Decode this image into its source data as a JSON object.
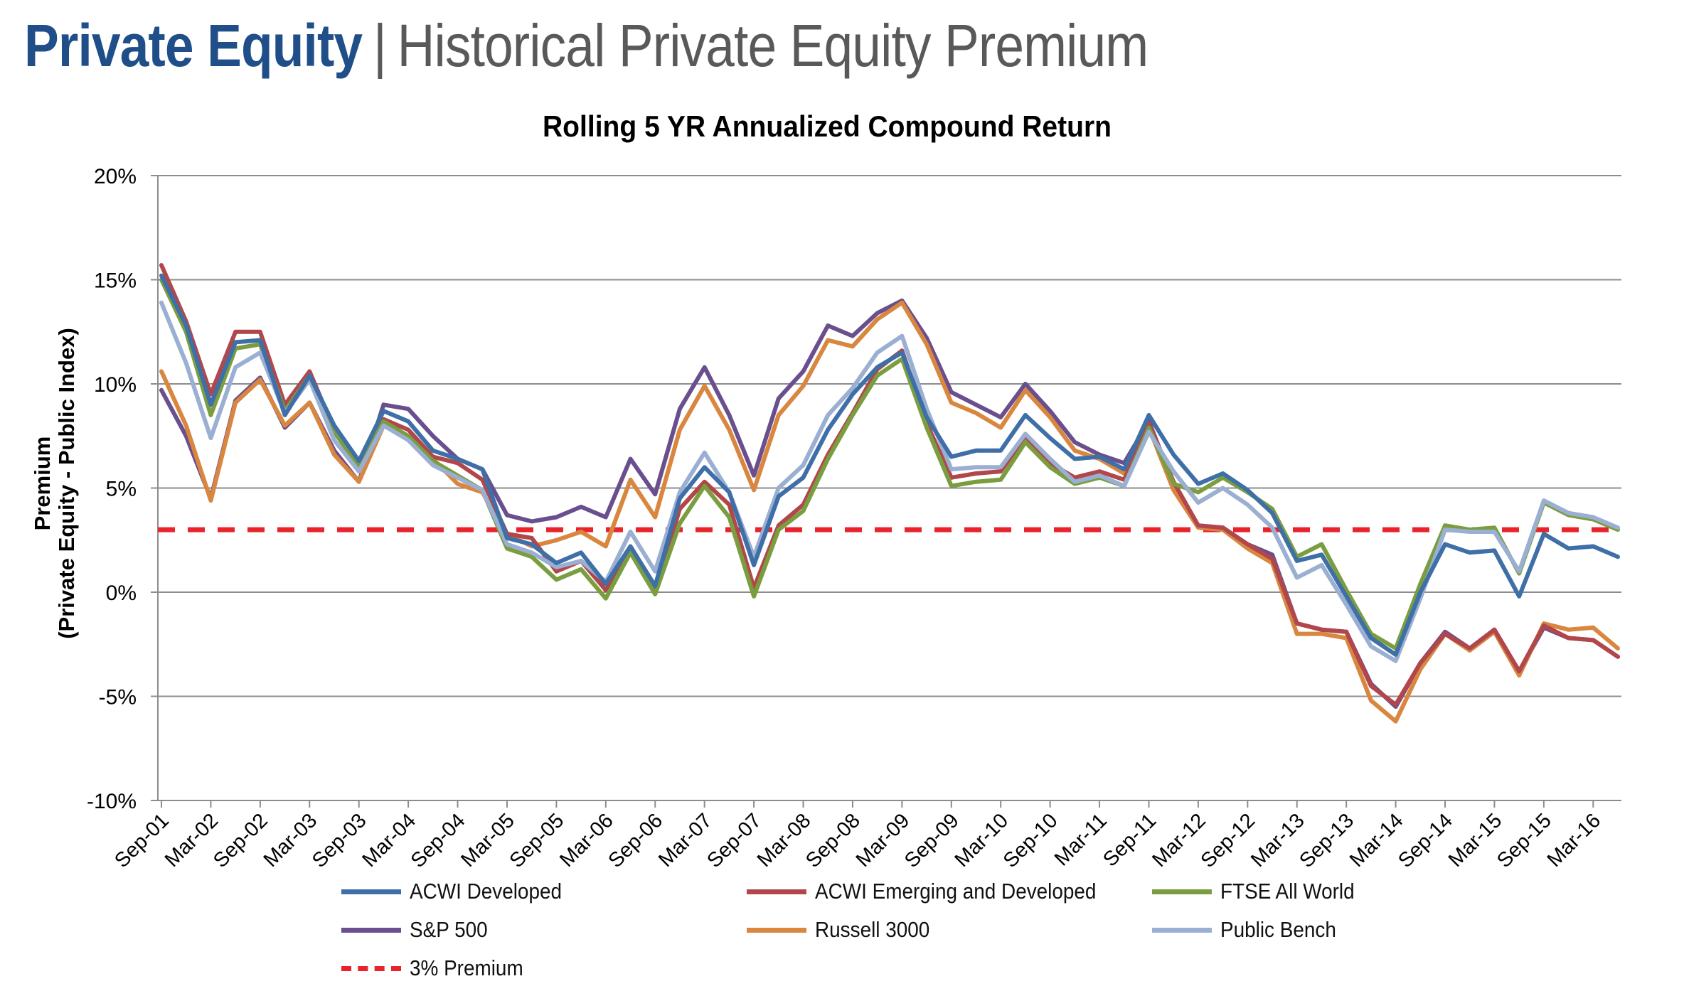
{
  "header": {
    "strong": "Private Equity",
    "separator": "|",
    "rest": "Historical Private Equity Premium"
  },
  "chart_data": {
    "type": "line",
    "title": "Rolling 5 YR Annualized Compound Return",
    "ylabel_line1": "Premium",
    "ylabel_line2": "(Private Equity - Public Index)",
    "xlabel": "",
    "ylim": [
      -10,
      20
    ],
    "yticks": [
      -10,
      -5,
      0,
      5,
      10,
      15,
      20
    ],
    "ytick_labels": [
      "-10%",
      "-5%",
      "0%",
      "5%",
      "10%",
      "15%",
      "20%"
    ],
    "grid": true,
    "legend_position": "bottom",
    "categories": [
      "Sep-01",
      "Dec-01",
      "Mar-02",
      "Jun-02",
      "Sep-02",
      "Dec-02",
      "Mar-03",
      "Jun-03",
      "Sep-03",
      "Dec-03",
      "Mar-04",
      "Jun-04",
      "Sep-04",
      "Dec-04",
      "Mar-05",
      "Jun-05",
      "Sep-05",
      "Dec-05",
      "Mar-06",
      "Jun-06",
      "Sep-06",
      "Dec-06",
      "Mar-07",
      "Jun-07",
      "Sep-07",
      "Dec-07",
      "Mar-08",
      "Jun-08",
      "Sep-08",
      "Dec-08",
      "Mar-09",
      "Jun-09",
      "Sep-09",
      "Dec-09",
      "Mar-10",
      "Jun-10",
      "Sep-10",
      "Dec-10",
      "Mar-11",
      "Jun-11",
      "Sep-11",
      "Dec-11",
      "Mar-12",
      "Jun-12",
      "Sep-12",
      "Dec-12",
      "Mar-13",
      "Jun-13",
      "Sep-13",
      "Dec-13",
      "Mar-14",
      "Jun-14",
      "Sep-14",
      "Dec-14",
      "Mar-15",
      "Jun-15",
      "Sep-15",
      "Dec-15",
      "Mar-16",
      "Jun-16"
    ],
    "xtick_labels": [
      "Sep-01",
      "Mar-02",
      "Sep-02",
      "Mar-03",
      "Sep-03",
      "Mar-04",
      "Sep-04",
      "Mar-05",
      "Sep-05",
      "Mar-06",
      "Sep-06",
      "Mar-07",
      "Sep-07",
      "Mar-08",
      "Sep-08",
      "Mar-09",
      "Sep-09",
      "Mar-10",
      "Sep-10",
      "Mar-11",
      "Sep-11",
      "Mar-12",
      "Sep-12",
      "Mar-13",
      "Sep-13",
      "Mar-14",
      "Sep-14",
      "Mar-15",
      "Sep-15",
      "Mar-16"
    ],
    "series": [
      {
        "name": "ACWI Developed",
        "color": "#3f6fa7",
        "values": [
          15.2,
          12.8,
          9.0,
          12.0,
          12.1,
          8.5,
          10.4,
          8.0,
          6.3,
          8.7,
          8.2,
          6.8,
          6.4,
          5.9,
          2.6,
          2.3,
          1.4,
          1.9,
          0.4,
          2.2,
          0.3,
          4.5,
          6.0,
          4.8,
          1.3,
          4.6,
          5.5,
          7.8,
          9.5,
          10.8,
          11.5,
          8.4,
          6.5,
          6.8,
          6.8,
          8.5,
          7.4,
          6.4,
          6.5,
          5.9,
          8.5,
          6.6,
          5.2,
          5.7,
          4.9,
          3.8,
          1.5,
          1.8,
          -0.2,
          -2.2,
          -3.0,
          0.0,
          2.3,
          1.9,
          2.0,
          -0.2,
          2.8,
          2.1,
          2.2,
          1.7
        ]
      },
      {
        "name": "ACWI Emerging and Developed",
        "color": "#b1474b",
        "values": [
          15.7,
          13.0,
          9.5,
          12.5,
          12.5,
          9.0,
          10.6,
          7.8,
          6.0,
          8.3,
          7.8,
          6.5,
          6.2,
          5.4,
          2.8,
          2.6,
          1.0,
          1.5,
          0.1,
          2.0,
          0.0,
          4.0,
          5.3,
          4.2,
          0.2,
          3.2,
          4.2,
          6.6,
          8.6,
          10.7,
          11.6,
          8.1,
          5.5,
          5.7,
          5.8,
          7.5,
          6.2,
          5.5,
          5.8,
          5.4,
          8.1,
          5.3,
          3.2,
          3.1,
          2.3,
          1.6,
          -1.5,
          -1.8,
          -1.9,
          -4.5,
          -5.4,
          -3.4,
          -2.0,
          -2.7,
          -1.8,
          -3.8,
          -1.6,
          -2.2,
          -2.3,
          -3.1
        ]
      },
      {
        "name": "FTSE All World",
        "color": "#7a9e3f",
        "values": [
          15.0,
          12.5,
          8.5,
          11.7,
          11.9,
          8.7,
          10.4,
          7.7,
          6.0,
          8.2,
          7.5,
          6.3,
          5.6,
          4.9,
          2.1,
          1.7,
          0.6,
          1.1,
          -0.3,
          1.9,
          -0.1,
          3.3,
          5.1,
          3.6,
          -0.2,
          3.0,
          3.9,
          6.4,
          8.5,
          10.4,
          11.2,
          7.9,
          5.1,
          5.3,
          5.4,
          7.2,
          6.0,
          5.2,
          5.5,
          5.1,
          7.9,
          5.2,
          4.8,
          5.5,
          4.8,
          4.0,
          1.7,
          2.3,
          0.1,
          -2.0,
          -2.7,
          0.4,
          3.2,
          3.0,
          3.1,
          0.9,
          4.3,
          3.7,
          3.5,
          3.0
        ]
      },
      {
        "name": "S&P 500",
        "color": "#6a4f8e",
        "values": [
          9.7,
          7.5,
          4.5,
          9.2,
          10.3,
          7.9,
          9.1,
          6.8,
          5.3,
          9.0,
          8.8,
          7.5,
          6.4,
          5.9,
          3.7,
          3.4,
          3.6,
          4.1,
          3.6,
          6.4,
          4.7,
          8.8,
          10.8,
          8.5,
          5.6,
          9.3,
          10.6,
          12.8,
          12.3,
          13.4,
          14.0,
          12.2,
          9.6,
          9.0,
          8.4,
          10.0,
          8.7,
          7.2,
          6.6,
          6.2,
          8.2,
          5.2,
          3.2,
          3.1,
          2.3,
          1.8,
          -1.5,
          -1.8,
          -1.9,
          -4.4,
          -5.5,
          -3.4,
          -1.9,
          -2.7,
          -1.8,
          -3.8,
          -1.7,
          -2.2,
          -2.3,
          -3.1
        ]
      },
      {
        "name": "Russell 3000",
        "color": "#d9863f",
        "values": [
          10.6,
          8.0,
          4.4,
          9.1,
          10.2,
          8.0,
          9.1,
          6.6,
          5.3,
          8.0,
          7.5,
          6.4,
          5.2,
          4.8,
          2.8,
          2.2,
          2.5,
          2.9,
          2.2,
          5.4,
          3.6,
          7.8,
          9.9,
          7.8,
          4.9,
          8.5,
          9.9,
          12.1,
          11.8,
          13.1,
          13.9,
          11.9,
          9.1,
          8.6,
          7.9,
          9.7,
          8.4,
          6.8,
          6.4,
          5.7,
          7.9,
          4.9,
          3.1,
          3.0,
          2.1,
          1.4,
          -2.0,
          -2.0,
          -2.2,
          -5.2,
          -6.2,
          -3.7,
          -2.0,
          -2.8,
          -1.9,
          -4.0,
          -1.5,
          -1.8,
          -1.7,
          -2.7
        ]
      },
      {
        "name": "Public Bench",
        "color": "#9aafd2",
        "values": [
          13.9,
          11.0,
          7.4,
          10.8,
          11.5,
          8.6,
          10.2,
          7.3,
          5.8,
          8.0,
          7.3,
          6.1,
          5.5,
          4.9,
          2.3,
          1.9,
          1.2,
          1.5,
          0.5,
          2.9,
          1.0,
          4.8,
          6.7,
          4.8,
          1.7,
          5.0,
          6.1,
          8.5,
          9.8,
          11.5,
          12.3,
          8.8,
          5.9,
          6.0,
          6.0,
          7.6,
          6.4,
          5.3,
          5.6,
          5.1,
          7.7,
          5.8,
          4.3,
          5.0,
          4.2,
          3.1,
          0.7,
          1.3,
          -0.6,
          -2.6,
          -3.3,
          -0.3,
          3.0,
          2.9,
          2.9,
          1.0,
          4.4,
          3.8,
          3.6,
          3.1
        ]
      }
    ],
    "reference": {
      "name": "3% Premium",
      "value": 3,
      "color": "#e8232b",
      "style": "dashed"
    }
  }
}
